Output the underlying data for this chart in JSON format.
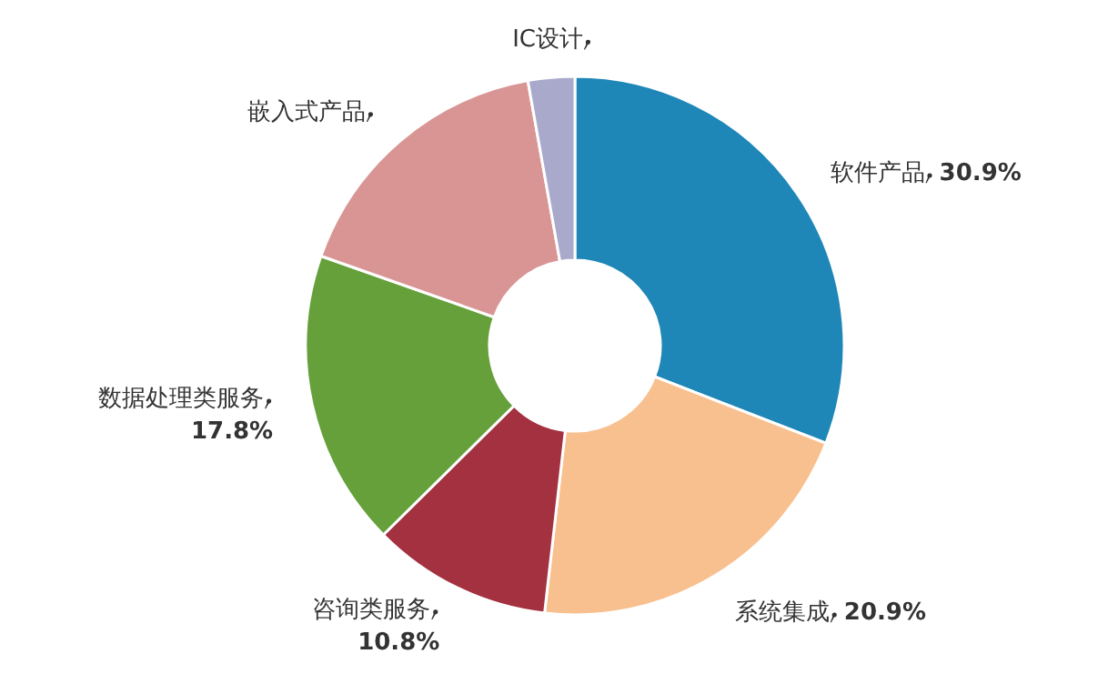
{
  "chart_data": {
    "type": "donut",
    "categories": [
      "软件产品",
      "系统集成",
      "咨询类服务",
      "数据处理类服务",
      "嵌入式产品",
      "IC设计"
    ],
    "values": [
      30.9,
      20.9,
      10.8,
      17.8,
      16.8,
      2.8
    ],
    "colors": [
      "#1f86b8",
      "#f8c08f",
      "#a33140",
      "#66a03a",
      "#d99594",
      "#a9a9cc"
    ],
    "value_labels": [
      "30.9%",
      "20.9%",
      "10.8%",
      "17.8%",
      null,
      null
    ]
  }
}
